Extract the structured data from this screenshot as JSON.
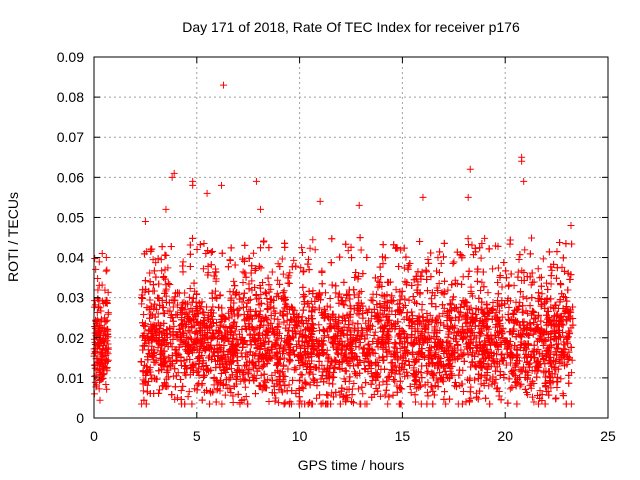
{
  "chart_data": {
    "type": "scatter",
    "title": "Day 171 of 2018, Rate Of TEC Index for receiver p176",
    "xlabel": "GPS time / hours",
    "ylabel": "ROTI / TECUs",
    "xlim": [
      0,
      25
    ],
    "ylim": [
      0,
      0.09
    ],
    "xticks": [
      0,
      5,
      10,
      15,
      20,
      25
    ],
    "yticks": [
      0,
      0.01,
      0.02,
      0.03,
      0.04,
      0.05,
      0.06,
      0.07,
      0.08,
      0.09
    ],
    "x_tick_labels": [
      "0",
      "5",
      "10",
      "15",
      "20",
      "25"
    ],
    "y_tick_labels": [
      "0",
      "0.01",
      "0.02",
      "0.03",
      "0.04",
      "0.05",
      "0.06",
      "0.07",
      "0.08",
      "0.09"
    ],
    "grid": true,
    "marker": "plus",
    "marker_color": "#ff0000",
    "series": [
      {
        "name": "ROTI",
        "segments": [
          {
            "x_start": 0.0,
            "x_end": 0.7,
            "typical_min": 0.006,
            "typical_max": 0.04
          },
          {
            "x_start": 2.3,
            "x_end": 23.3,
            "typical_min": 0.005,
            "typical_max": 0.045
          }
        ],
        "notable_points": [
          {
            "x": 6.3,
            "y": 0.083
          },
          {
            "x": 20.8,
            "y": 0.065
          },
          {
            "x": 20.8,
            "y": 0.064
          },
          {
            "x": 18.3,
            "y": 0.062
          },
          {
            "x": 3.9,
            "y": 0.061
          },
          {
            "x": 3.8,
            "y": 0.06
          },
          {
            "x": 7.9,
            "y": 0.059
          },
          {
            "x": 20.9,
            "y": 0.059
          },
          {
            "x": 4.8,
            "y": 0.059
          },
          {
            "x": 4.8,
            "y": 0.058
          },
          {
            "x": 6.2,
            "y": 0.058
          },
          {
            "x": 5.5,
            "y": 0.056
          },
          {
            "x": 16.0,
            "y": 0.055
          },
          {
            "x": 18.2,
            "y": 0.055
          },
          {
            "x": 11.0,
            "y": 0.054
          },
          {
            "x": 12.9,
            "y": 0.053
          },
          {
            "x": 3.5,
            "y": 0.052
          },
          {
            "x": 8.1,
            "y": 0.052
          },
          {
            "x": 2.5,
            "y": 0.049
          },
          {
            "x": 23.2,
            "y": 0.048
          },
          {
            "x": 0.4,
            "y": 0.041
          },
          {
            "x": 0.6,
            "y": 0.04
          }
        ]
      }
    ]
  }
}
